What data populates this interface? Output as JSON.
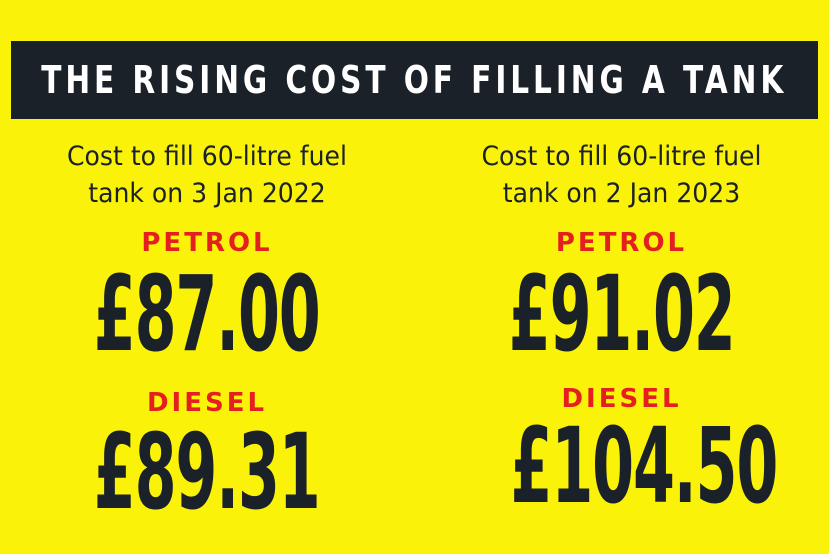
{
  "title": "THE RISING COST OF FILLING A TANK",
  "colors": {
    "background": "#fbf20a",
    "title_bar": "#1b2128",
    "label": "#e31f1f",
    "text": "#1b2128"
  },
  "left": {
    "subtitle_line1": "Cost to fill 60-litre fuel",
    "subtitle_line2": "tank on 3 Jan 2022",
    "petrol_label": "PETROL",
    "petrol_price": "£87.00",
    "diesel_label": "DIESEL",
    "diesel_price": "£89.31"
  },
  "right": {
    "subtitle_line1": "Cost to fill 60-litre fuel",
    "subtitle_line2": "tank on 2 Jan 2023",
    "petrol_label": "PETROL",
    "petrol_price": "£91.02",
    "diesel_label": "DIESEL",
    "diesel_price": "£104.50"
  }
}
